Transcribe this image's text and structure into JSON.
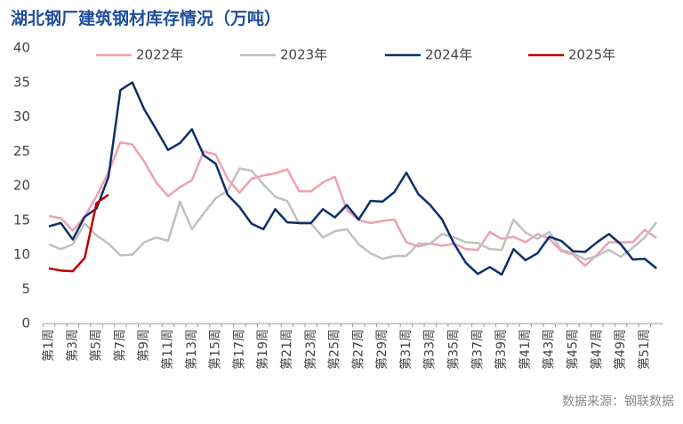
{
  "chart_data": {
    "type": "line",
    "title": "湖北钢厂建筑钢材库存情况（万吨）",
    "source": "数据来源：钢联数据",
    "categories": [
      "第1周",
      null,
      "第3周",
      null,
      "第5周",
      null,
      "第7周",
      null,
      "第9周",
      null,
      "第11周",
      null,
      "第13周",
      null,
      "第15周",
      null,
      "第17周",
      null,
      "第19周",
      null,
      "第21周",
      null,
      "第23周",
      null,
      "第25周",
      null,
      "第27周",
      null,
      "第29周",
      null,
      "第31周",
      null,
      "第33周",
      null,
      "第35周",
      null,
      "第37周",
      null,
      "第39周",
      null,
      "第41周",
      null,
      "第43周",
      null,
      "第45周",
      null,
      "第47周",
      null,
      "第49周",
      null,
      "第51周",
      null
    ],
    "series": [
      {
        "name": "2022年",
        "color": "#f0a0ad",
        "values": [
          15.6,
          15.3,
          13.5,
          15.5,
          18.5,
          22,
          26.3,
          26,
          23.5,
          20.5,
          18.5,
          19.8,
          20.8,
          25,
          24.5,
          21,
          19,
          21,
          21.5,
          21.8,
          22.4,
          19.2,
          19.2,
          20.5,
          21.3,
          16.5,
          15,
          14.6,
          14.9,
          15.1,
          11.8,
          11.2,
          11.6,
          11.3,
          11.6,
          10.8,
          10.7,
          13.3,
          12.3,
          12.6,
          11.8,
          13,
          12.3,
          10.5,
          10,
          8.4,
          10,
          11.8,
          11.8,
          11.8,
          13.6,
          12.4
        ]
      },
      {
        "name": "2023年",
        "color": "#c0c0c0",
        "values": [
          11.5,
          10.8,
          11.5,
          14.5,
          12.8,
          11.6,
          9.9,
          10,
          11.8,
          12.5,
          12,
          17.7,
          13.7,
          16,
          18.2,
          19.3,
          22.5,
          22.2,
          20.2,
          18.4,
          17.8,
          14.5,
          14.5,
          12.5,
          13.4,
          13.7,
          11.5,
          10.2,
          9.4,
          9.8,
          9.8,
          11.6,
          11.6,
          13,
          12.5,
          11.8,
          11.7,
          10.8,
          10.7,
          15.1,
          13.2,
          12.3,
          13.3,
          10.7,
          10.2,
          9.3,
          9.8,
          10.7,
          9.7,
          11,
          12.5,
          14.7
        ]
      },
      {
        "name": "2024年",
        "color": "#0d2f6e",
        "values": [
          14.1,
          14.6,
          12.2,
          15.5,
          16.7,
          21.3,
          33.9,
          35,
          31.1,
          28.2,
          25.2,
          26.2,
          28.2,
          24.4,
          23.2,
          18.7,
          16.9,
          14.5,
          13.7,
          16.6,
          14.7,
          14.6,
          14.6,
          16.6,
          15.4,
          17.2,
          15.1,
          17.8,
          17.7,
          19.1,
          21.9,
          18.8,
          17.2,
          15.1,
          11.6,
          8.8,
          7.2,
          8.2,
          7.1,
          10.8,
          9.2,
          10.2,
          12.6,
          12,
          10.5,
          10.4,
          11.8,
          13,
          11.5,
          9.3,
          9.4,
          8.0
        ]
      },
      {
        "name": "2025年",
        "color": "#c00000",
        "values": [
          8,
          7.7,
          7.6,
          9.5,
          17.5,
          18.7,
          null,
          null,
          null,
          null,
          null,
          null,
          null,
          null,
          null,
          null,
          null,
          null,
          null,
          null,
          null,
          null,
          null,
          null,
          null,
          null,
          null,
          null,
          null,
          null,
          null,
          null,
          null,
          null,
          null,
          null,
          null,
          null,
          null,
          null,
          null,
          null,
          null,
          null,
          null,
          null,
          null,
          null,
          null,
          null,
          null,
          null
        ]
      }
    ],
    "ylim": [
      0,
      40
    ],
    "yticks": [
      0,
      5,
      10,
      15,
      20,
      25,
      30,
      35,
      40
    ],
    "grid": false,
    "legend": "top"
  }
}
